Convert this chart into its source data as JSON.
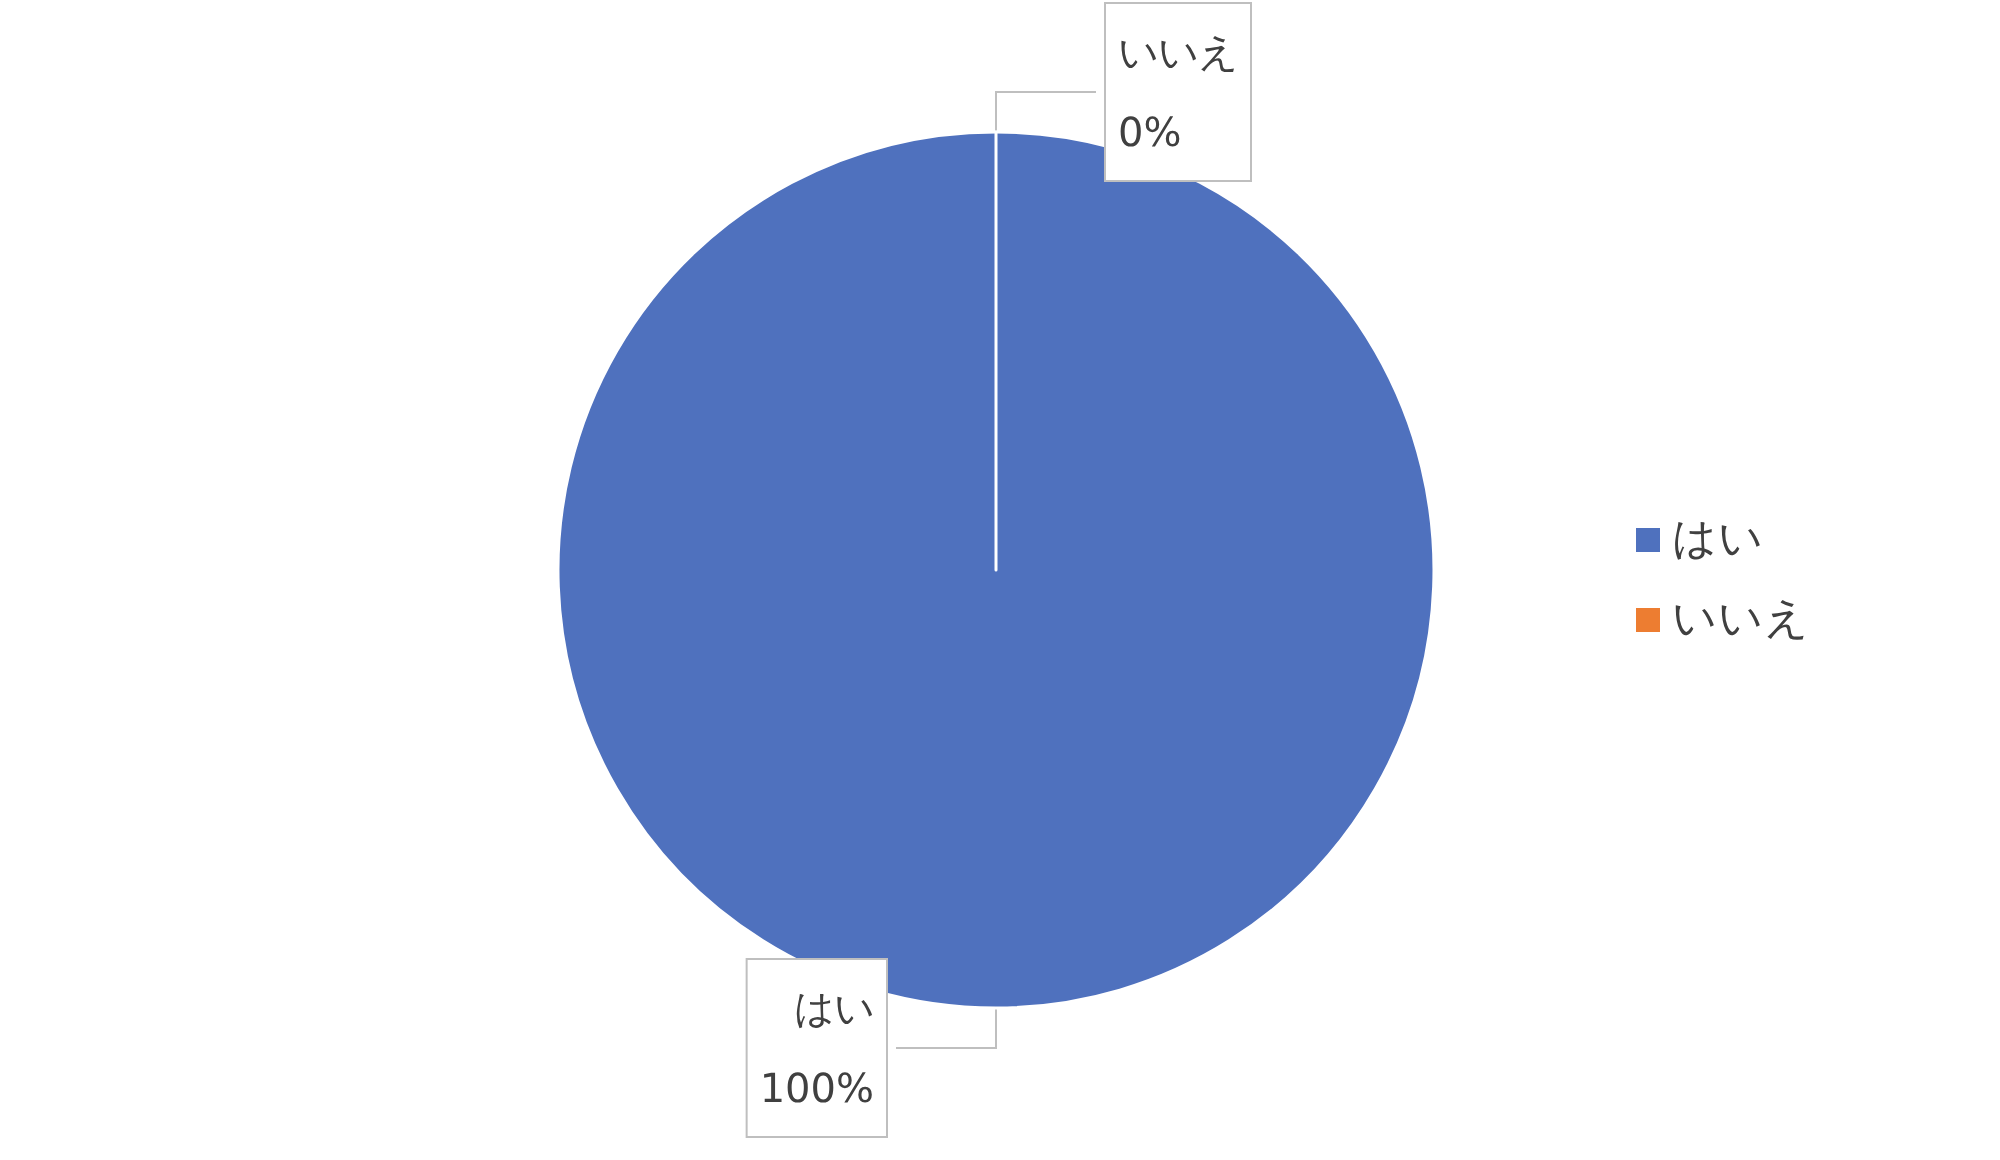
{
  "chart_data": {
    "type": "pie",
    "categories": [
      "はい",
      "いいえ"
    ],
    "values": [
      100,
      0
    ],
    "colors": [
      "#4f71be",
      "#ed7d31"
    ],
    "value_labels": [
      "100%",
      "0%"
    ],
    "legend": "right"
  }
}
